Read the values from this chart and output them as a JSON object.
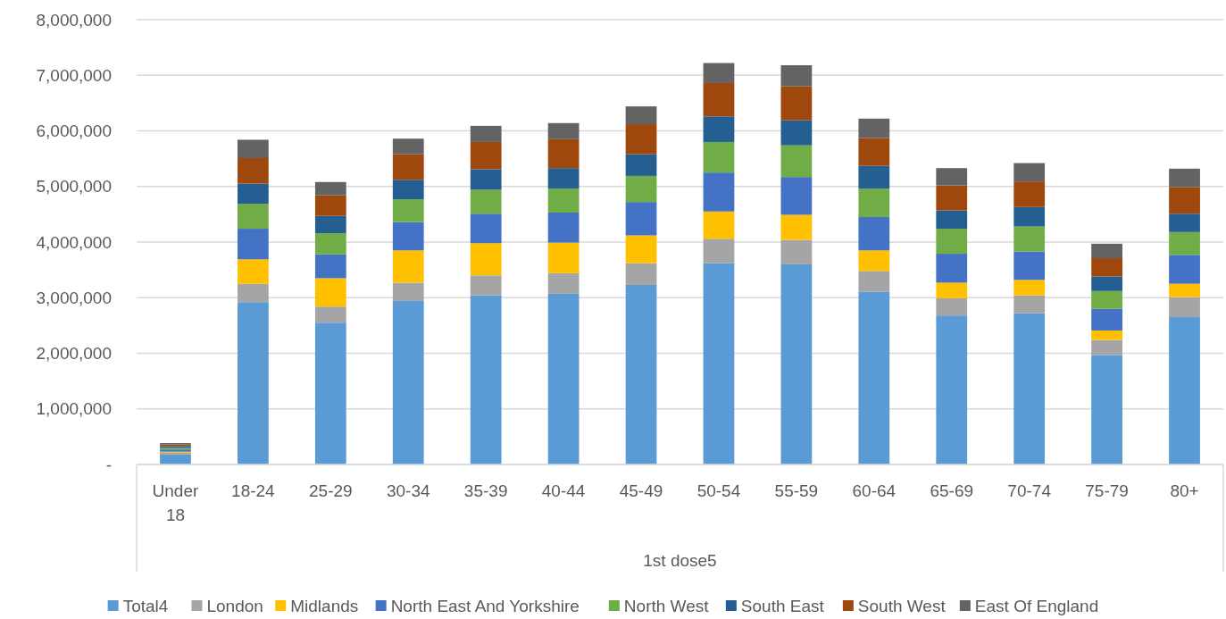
{
  "chart_data": {
    "type": "bar",
    "stacked": true,
    "xlabel": "1st dose5",
    "categories": [
      "Under 18",
      "18-24",
      "25-29",
      "30-34",
      "35-39",
      "40-44",
      "45-49",
      "50-54",
      "55-59",
      "60-64",
      "65-69",
      "70-74",
      "75-79",
      "80+"
    ],
    "ylim": [
      0,
      8000000
    ],
    "yticks": [
      {
        "value": 0,
        "label": "-"
      },
      {
        "value": 1000000,
        "label": "1,000,000"
      },
      {
        "value": 2000000,
        "label": "2,000,000"
      },
      {
        "value": 3000000,
        "label": "3,000,000"
      },
      {
        "value": 4000000,
        "label": "4,000,000"
      },
      {
        "value": 5000000,
        "label": "5,000,000"
      },
      {
        "value": 6000000,
        "label": "6,000,000"
      },
      {
        "value": 7000000,
        "label": "7,000,000"
      },
      {
        "value": 8000000,
        "label": "8,000,000"
      }
    ],
    "grid": "y",
    "legend": "bottom",
    "series": [
      {
        "name": "Total4",
        "color": "#5b9bd5",
        "values": [
          180000,
          2920000,
          2550000,
          2940000,
          3040000,
          3070000,
          3230000,
          3620000,
          3600000,
          3110000,
          2680000,
          2720000,
          1970000,
          2650000
        ]
      },
      {
        "name": "London",
        "color": "#a5a5a5",
        "values": [
          30000,
          330000,
          290000,
          330000,
          360000,
          370000,
          390000,
          440000,
          440000,
          370000,
          310000,
          320000,
          270000,
          360000
        ]
      },
      {
        "name": "Midlands",
        "color": "#ffc000",
        "values": [
          20000,
          440000,
          510000,
          580000,
          580000,
          550000,
          500000,
          490000,
          450000,
          370000,
          280000,
          280000,
          170000,
          240000
        ]
      },
      {
        "name": "North East And Yorkshire",
        "color": "#4472c4",
        "values": [
          40000,
          550000,
          430000,
          510000,
          530000,
          540000,
          600000,
          700000,
          680000,
          600000,
          520000,
          510000,
          390000,
          520000
        ]
      },
      {
        "name": "North West",
        "color": "#70ad47",
        "values": [
          30000,
          450000,
          380000,
          410000,
          430000,
          430000,
          470000,
          550000,
          570000,
          510000,
          450000,
          450000,
          320000,
          410000
        ]
      },
      {
        "name": "South East",
        "color": "#255e91",
        "values": [
          30000,
          360000,
          310000,
          350000,
          370000,
          370000,
          390000,
          460000,
          450000,
          410000,
          330000,
          350000,
          260000,
          330000
        ]
      },
      {
        "name": "South West",
        "color": "#9e480e",
        "values": [
          30000,
          460000,
          370000,
          460000,
          490000,
          520000,
          540000,
          600000,
          610000,
          500000,
          450000,
          460000,
          330000,
          480000
        ]
      },
      {
        "name": "East Of England",
        "color": "#636363",
        "values": [
          25000,
          330000,
          240000,
          280000,
          290000,
          290000,
          320000,
          360000,
          380000,
          350000,
          310000,
          330000,
          260000,
          330000
        ]
      }
    ]
  }
}
